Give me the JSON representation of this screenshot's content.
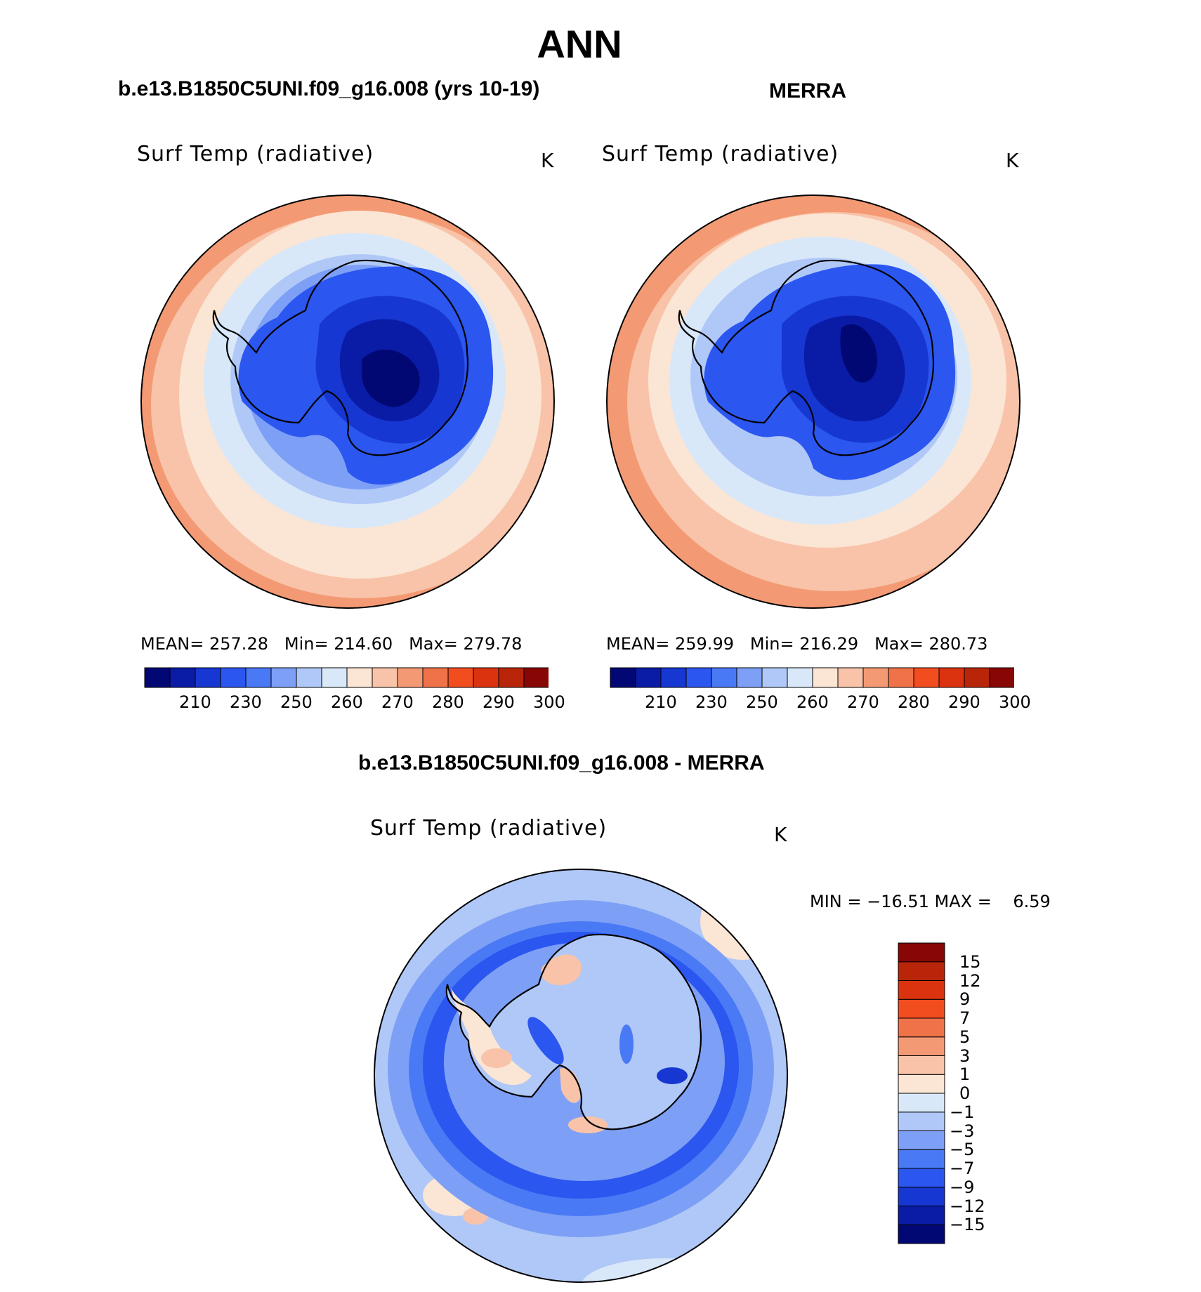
{
  "main_title": "ANN",
  "panels": [
    {
      "case_title": "b.e13.B1850C5UNI.f09_g16.008 (yrs 10-19)",
      "variable_title": "Surf Temp (radiative)",
      "units": "K",
      "stats": {
        "mean_label": "MEAN=",
        "mean": "257.28",
        "min_label": "Min=",
        "min": "214.60",
        "max_label": "Max=",
        "max": "279.78"
      }
    },
    {
      "case_title": "MERRA",
      "variable_title": "Surf Temp (radiative)",
      "units": "K",
      "stats": {
        "mean_label": "MEAN=",
        "mean": "259.99",
        "min_label": "Min=",
        "min": "216.29",
        "max_label": "Max=",
        "max": "280.73"
      }
    }
  ],
  "diff_panel": {
    "case_title": "b.e13.B1850C5UNI.f09_g16.008 - MERRA",
    "variable_title": "Surf Temp (radiative)",
    "units": "K",
    "minmax": "MIN = −16.51 MAX =    6.59"
  },
  "abs_colorbar": {
    "colors": [
      "#020873",
      "#0a1ba6",
      "#1637d1",
      "#2b56ef",
      "#4a79f5",
      "#7da0f6",
      "#b0c8f7",
      "#d8e8f9",
      "#fbe5d4",
      "#f8c3a8",
      "#f39a74",
      "#f07248",
      "#f24d1f",
      "#db3310",
      "#b82508",
      "#880705"
    ],
    "tick_labels": [
      "210",
      "230",
      "250",
      "260",
      "270",
      "280",
      "290",
      "300"
    ]
  },
  "diff_colorbar": {
    "colors": [
      "#020873",
      "#0a1ba6",
      "#1637d1",
      "#2b56ef",
      "#4a79f5",
      "#7da0f6",
      "#b0c8f7",
      "#d8e8f9",
      "#fbe5d4",
      "#f8c3a8",
      "#f39a74",
      "#f07248",
      "#f24d1f",
      "#db3310",
      "#b82508",
      "#880705"
    ],
    "tick_labels": [
      "15",
      "12",
      "9",
      "7",
      "5",
      "3",
      "1",
      "0",
      "−1",
      "−3",
      "−5",
      "−7",
      "−9",
      "−12",
      "−15"
    ]
  }
}
